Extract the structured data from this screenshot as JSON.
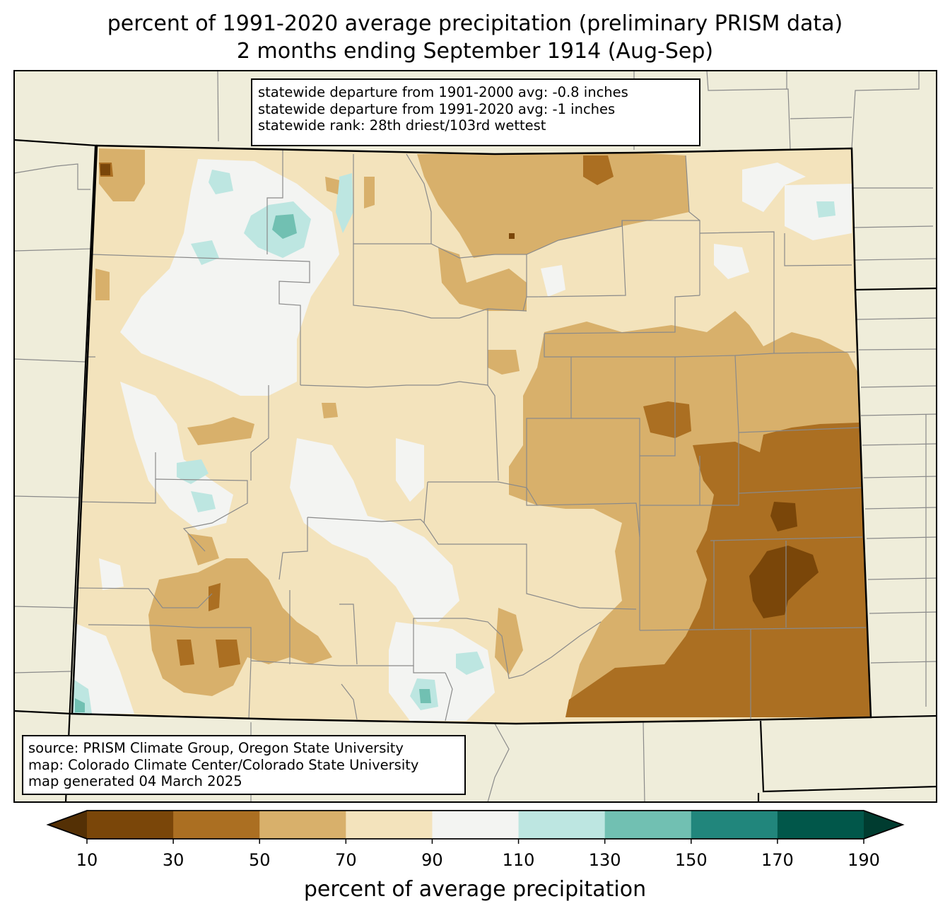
{
  "title": {
    "line1": "percent of 1991-2020 average precipitation (preliminary PRISM data)",
    "line2": "2 months ending September 1914 (Aug-Sep)"
  },
  "stats": {
    "line1": "statewide departure from 1901-2000 avg: -0.8 inches",
    "line2": "statewide departure from 1991-2020 avg: -1 inches",
    "line3": "statewide rank: 28th driest/103rd wettest"
  },
  "credits": {
    "line1": "source: PRISM Climate Group, Oregon State University",
    "line2": "map: Colorado Climate Center/Colorado State University",
    "line3": "map generated 04 March 2025"
  },
  "colorbar": {
    "label": "percent of average precipitation",
    "ticks": [
      "10",
      "30",
      "50",
      "70",
      "90",
      "110",
      "130",
      "150",
      "170",
      "190"
    ],
    "bins": [
      {
        "range": "<10",
        "color": "#543005"
      },
      {
        "range": "10-30",
        "color": "#7a4609"
      },
      {
        "range": "30-50",
        "color": "#ab6f22"
      },
      {
        "range": "50-70",
        "color": "#d8b06b"
      },
      {
        "range": "70-90",
        "color": "#f3e3bc"
      },
      {
        "range": "90-110",
        "color": "#f3f4f2"
      },
      {
        "range": "110-130",
        "color": "#bde6e1"
      },
      {
        "range": "130-150",
        "color": "#71c0b2"
      },
      {
        "range": "150-170",
        "color": "#21867c"
      },
      {
        "range": "170-190",
        "color": "#01574a"
      },
      {
        "range": ">190",
        "color": "#003c30"
      }
    ]
  },
  "map_colors": {
    "background_land": "#efedda",
    "county_lines": "#8a8a8a",
    "state_lines": "#000000"
  }
}
